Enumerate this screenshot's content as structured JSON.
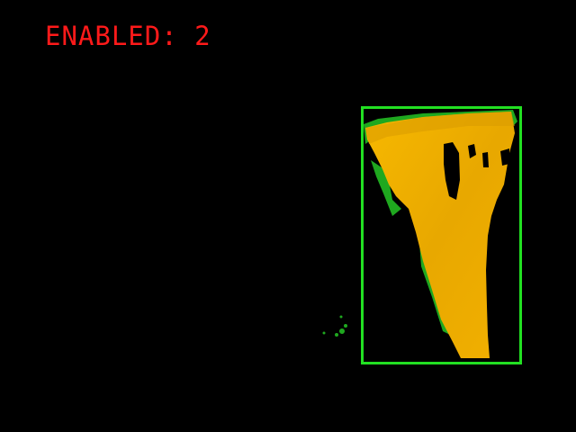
{
  "status": {
    "label": "ENABLED:",
    "value": "2",
    "color": "#ff1a1a"
  },
  "detection": {
    "box_color": "#22e022",
    "object_color": "#f0b400",
    "noise_color": "#1fa81f"
  }
}
